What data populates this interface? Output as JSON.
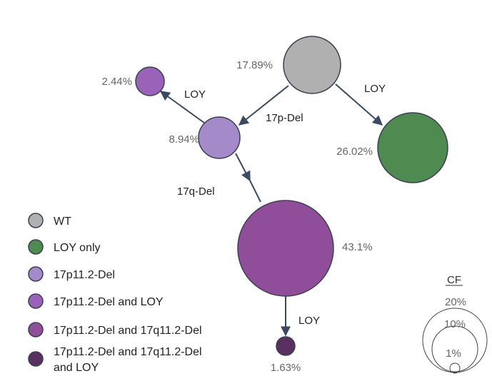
{
  "colors": {
    "wt": "#b0b0b0",
    "loy_only": "#4f8a50",
    "del17p": "#a48ac8",
    "del17p_loy": "#9a62b8",
    "del17p_17q": "#904e9a",
    "del17p_17q_loy": "#5a3060",
    "edge": "#3a4a60"
  },
  "nodes": {
    "wt": {
      "pct": "17.89%"
    },
    "loy_only": {
      "pct": "26.02%"
    },
    "del17p": {
      "pct": "8.94%"
    },
    "del17p_loy": {
      "pct": "2.44%"
    },
    "del17p_17q": {
      "pct": "43.1%"
    },
    "del17p_17q_loy": {
      "pct": "1.63%"
    }
  },
  "edges": {
    "wt_to_loy": "LOY",
    "wt_to_17p": "17p-Del",
    "p17_to_loy": "LOY",
    "p17_to_17q": "17q-Del",
    "q17_to_loy": "LOY"
  },
  "legend": {
    "items": [
      {
        "label": "WT"
      },
      {
        "label": "LOY only"
      },
      {
        "label": "17p11.2-Del"
      },
      {
        "label": "17p11.2-Del and LOY"
      },
      {
        "label": "17p11.2-Del and 17q11.2-Del"
      },
      {
        "label_line1": "17p11.2-Del and 17q11.2-Del",
        "label_line2": "and LOY"
      }
    ]
  },
  "cf_scale": {
    "title": "CF",
    "labels": [
      "20%",
      "10%",
      "1%"
    ]
  }
}
